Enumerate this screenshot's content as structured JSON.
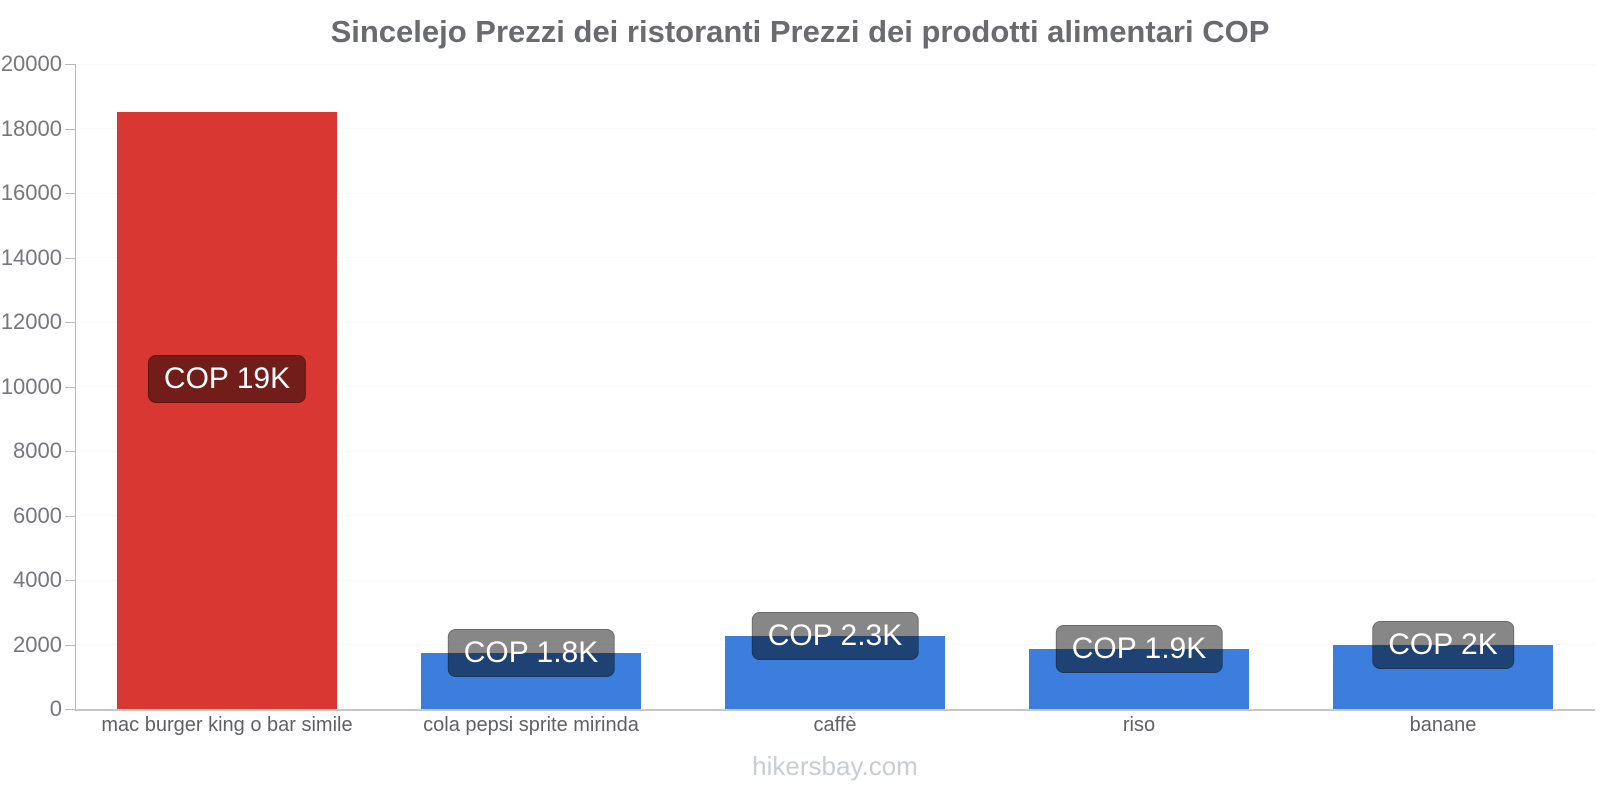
{
  "chart": {
    "title": "Sincelejo Prezzi dei ristoranti Prezzi dei prodotti alimentari COP"
  },
  "footer": {
    "watermark": "hikersbay.com"
  },
  "chart_data": {
    "type": "bar",
    "title": "Sincelejo Prezzi dei ristoranti Prezzi dei prodotti alimentari COP",
    "categories": [
      "mac burger king o bar simile",
      "cola pepsi sprite mirinda",
      "caffè",
      "riso",
      "banane"
    ],
    "values": [
      18500,
      1750,
      2250,
      1850,
      2000
    ],
    "bar_labels": [
      "COP 19K",
      "COP 1.8K",
      "COP 2.3K",
      "COP 1.9K",
      "COP 2K"
    ],
    "bar_colors": [
      "#d93832",
      "#3b7edd",
      "#3b7edd",
      "#3b7edd",
      "#3b7edd"
    ],
    "currency": "COP",
    "xlabel": "",
    "ylabel": "",
    "ylim": [
      0,
      20000
    ],
    "yticks": [
      0,
      2000,
      4000,
      6000,
      8000,
      10000,
      12000,
      14000,
      16000,
      18000,
      20000
    ],
    "grid": false,
    "legend": false,
    "colors": {
      "badge_background": "rgba(0,0,0,0.47)",
      "badge_text": "#ffffff",
      "axis_line": "#b9b9c0",
      "baseline": "#c6c6cd",
      "y_tick_label": "#76777c",
      "x_label": "#606165",
      "title": "#6a6b6e",
      "watermark": "#c9ccd6"
    }
  }
}
